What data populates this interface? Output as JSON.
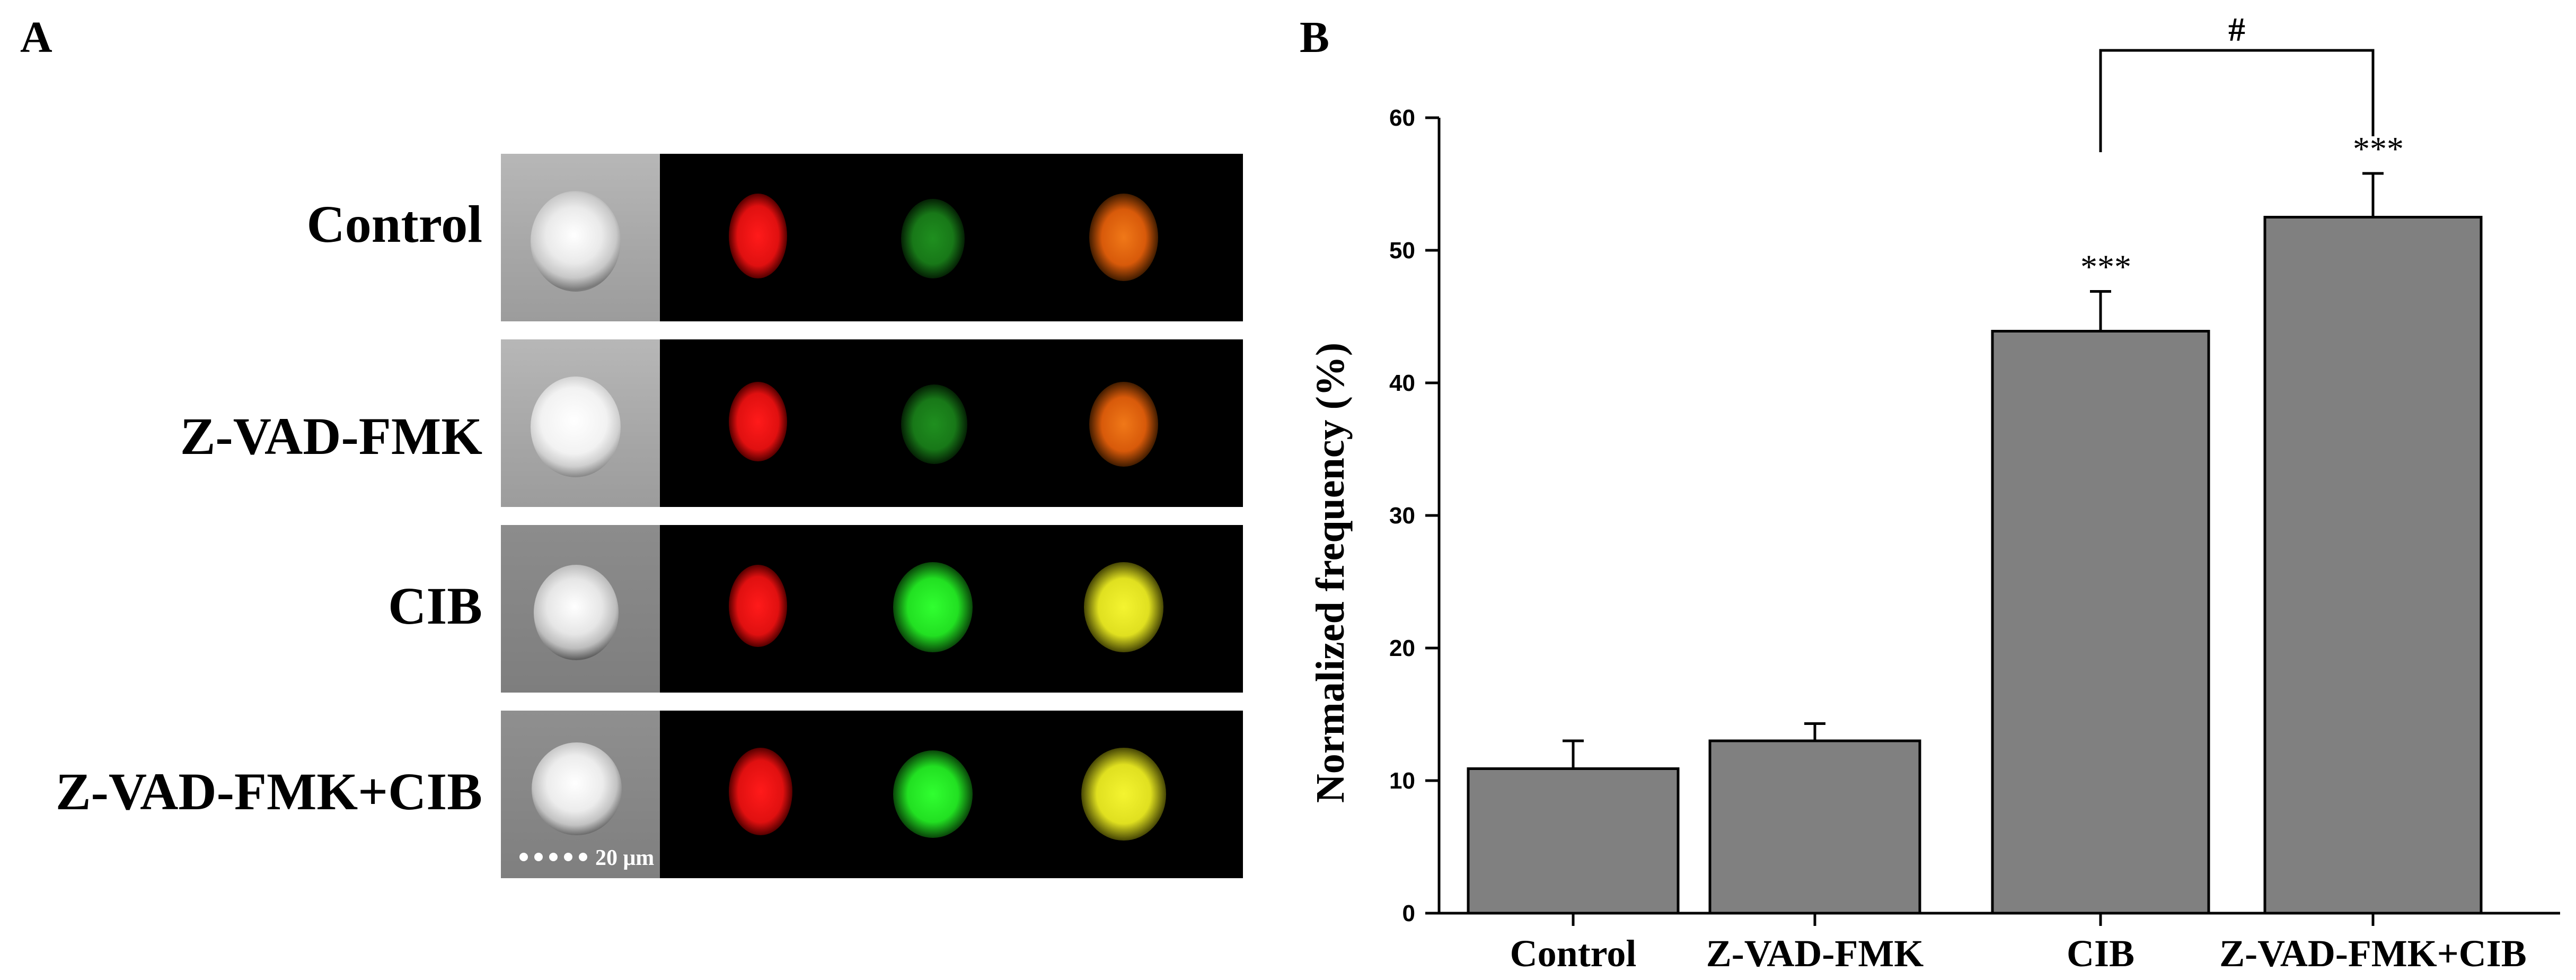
{
  "panels": {
    "a_label": "A",
    "b_label": "B"
  },
  "panel_a": {
    "rows": [
      {
        "label": "Control"
      },
      {
        "label": "Z-VAD-FMK"
      },
      {
        "label": "CIB"
      },
      {
        "label": "Z-VAD-FMK+CIB"
      }
    ],
    "scale_bar_label": "20 μm",
    "colors": {
      "red": "#ff1a1a",
      "green_dim": "#1f8f1f",
      "green_bright": "#22e022",
      "merge_orange": "#e86a10",
      "merge_yellow": "#e8e820"
    }
  },
  "chart_data": {
    "type": "bar",
    "title": "",
    "xlabel": "",
    "ylabel": "Normalized frequency (%)",
    "categories": [
      "Control",
      "Z-VAD-FMK",
      "CIB",
      "Z-VAD-FMK+CIB"
    ],
    "values": [
      10.9,
      13.0,
      43.9,
      52.5
    ],
    "errors": [
      2.1,
      1.3,
      3.0,
      3.3
    ],
    "ylim": [
      0,
      60
    ],
    "yticks": [
      "0",
      "10",
      "20",
      "30",
      "40",
      "50",
      "60"
    ],
    "bar_color": "#808080",
    "significance": [
      "",
      "",
      "***",
      "***"
    ],
    "bracket": {
      "from": "CIB",
      "to": "Z-VAD-FMK+CIB",
      "label": "#"
    },
    "grid": false,
    "legend": "none"
  }
}
